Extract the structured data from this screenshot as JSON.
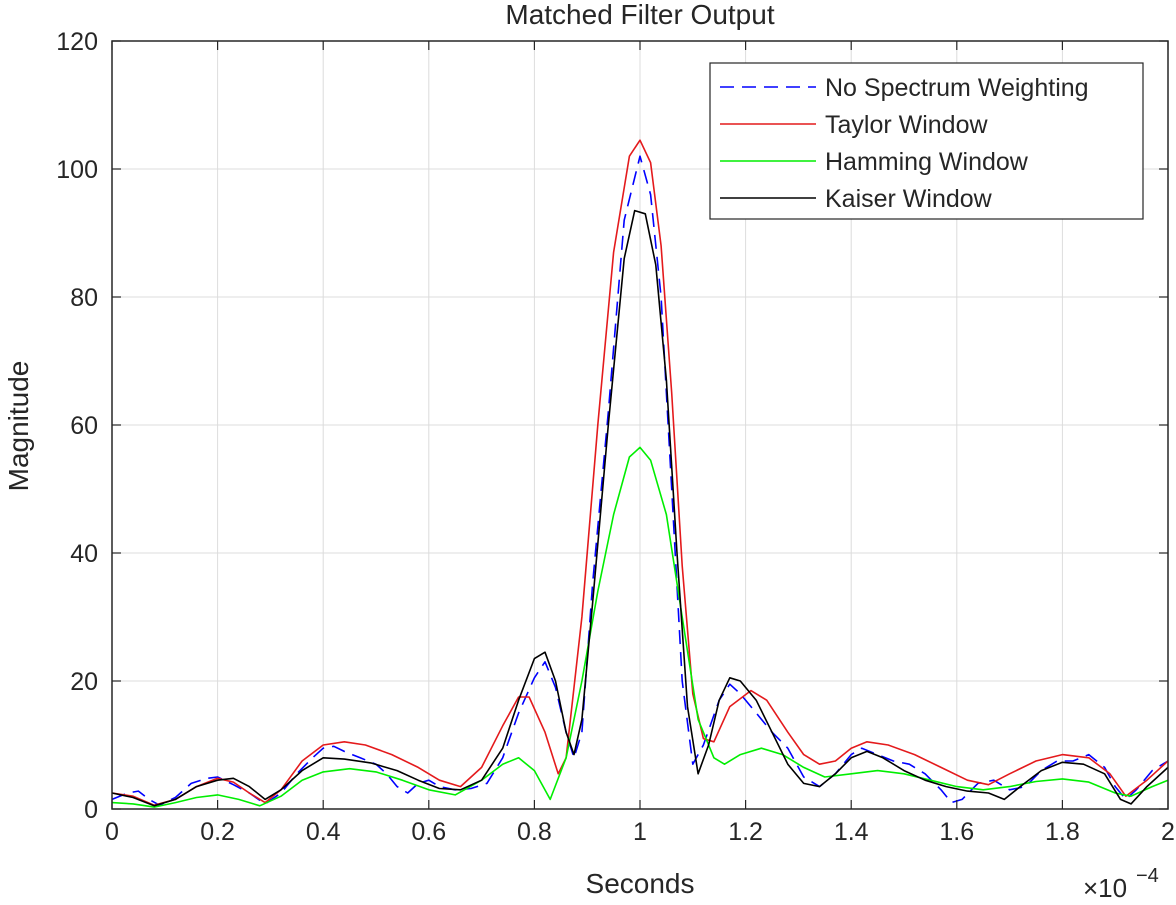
{
  "chart_data": {
    "type": "line",
    "title": "Matched Filter Output",
    "xlabel": "Seconds",
    "ylabel": "Magnitude",
    "x_exponent_label": "×10",
    "x_exponent_power": "−4",
    "xlim": [
      0,
      2
    ],
    "ylim": [
      0,
      120
    ],
    "xticks": [
      0,
      0.2,
      0.4,
      0.6,
      0.8,
      1,
      1.2,
      1.4,
      1.6,
      1.8,
      2
    ],
    "yticks": [
      0,
      20,
      40,
      60,
      80,
      100,
      120
    ],
    "xtick_labels": [
      "0",
      "0.2",
      "0.4",
      "0.6",
      "0.8",
      "1",
      "1.2",
      "1.4",
      "1.6",
      "1.8",
      "2"
    ],
    "ytick_labels": [
      "0",
      "20",
      "40",
      "60",
      "80",
      "100",
      "120"
    ],
    "grid": true,
    "legend_position": "top-right",
    "series": [
      {
        "name": "No Spectrum Weighting",
        "color": "#0000ff",
        "dash": "dashed",
        "points": [
          [
            0,
            1.5
          ],
          [
            0.03,
            2.5
          ],
          [
            0.05,
            2.8
          ],
          [
            0.07,
            1.5
          ],
          [
            0.09,
            0.6
          ],
          [
            0.12,
            1.8
          ],
          [
            0.15,
            4.0
          ],
          [
            0.18,
            4.8
          ],
          [
            0.2,
            5.0
          ],
          [
            0.23,
            3.8
          ],
          [
            0.26,
            2.5
          ],
          [
            0.29,
            0.8
          ],
          [
            0.32,
            2.5
          ],
          [
            0.35,
            5.5
          ],
          [
            0.38,
            8.0
          ],
          [
            0.4,
            9.5
          ],
          [
            0.42,
            9.8
          ],
          [
            0.44,
            9.0
          ],
          [
            0.47,
            8.0
          ],
          [
            0.5,
            7.0
          ],
          [
            0.52,
            5.5
          ],
          [
            0.54,
            3.5
          ],
          [
            0.56,
            2.5
          ],
          [
            0.58,
            4.0
          ],
          [
            0.6,
            4.5
          ],
          [
            0.62,
            3.5
          ],
          [
            0.65,
            3.0
          ],
          [
            0.68,
            3.2
          ],
          [
            0.71,
            4.0
          ],
          [
            0.74,
            8.0
          ],
          [
            0.77,
            15.0
          ],
          [
            0.8,
            20.5
          ],
          [
            0.82,
            23.0
          ],
          [
            0.84,
            19.0
          ],
          [
            0.86,
            12.0
          ],
          [
            0.875,
            8.0
          ],
          [
            0.89,
            12.0
          ],
          [
            0.91,
            35.0
          ],
          [
            0.94,
            62.0
          ],
          [
            0.97,
            92.0
          ],
          [
            1.0,
            102.0
          ],
          [
            1.02,
            96.0
          ],
          [
            1.04,
            80.0
          ],
          [
            1.06,
            50.0
          ],
          [
            1.08,
            20.0
          ],
          [
            1.1,
            7.0
          ],
          [
            1.12,
            10.0
          ],
          [
            1.15,
            17.0
          ],
          [
            1.17,
            19.5
          ],
          [
            1.19,
            18.0
          ],
          [
            1.22,
            15.0
          ],
          [
            1.25,
            12.0
          ],
          [
            1.28,
            9.5
          ],
          [
            1.31,
            5.0
          ],
          [
            1.34,
            3.5
          ],
          [
            1.37,
            5.5
          ],
          [
            1.4,
            8.5
          ],
          [
            1.42,
            9.5
          ],
          [
            1.45,
            8.5
          ],
          [
            1.48,
            7.5
          ],
          [
            1.51,
            7.0
          ],
          [
            1.54,
            5.5
          ],
          [
            1.57,
            3.0
          ],
          [
            1.59,
            1.0
          ],
          [
            1.61,
            1.5
          ],
          [
            1.64,
            4.0
          ],
          [
            1.67,
            4.5
          ],
          [
            1.7,
            3.0
          ],
          [
            1.73,
            3.5
          ],
          [
            1.76,
            6.0
          ],
          [
            1.79,
            7.5
          ],
          [
            1.82,
            7.5
          ],
          [
            1.85,
            8.5
          ],
          [
            1.88,
            6.5
          ],
          [
            1.9,
            3.5
          ],
          [
            1.92,
            1.5
          ],
          [
            1.94,
            3.0
          ],
          [
            1.97,
            6.0
          ],
          [
            2.0,
            7.5
          ]
        ]
      },
      {
        "name": "Taylor Window",
        "color": "#e41a1c",
        "dash": "solid",
        "points": [
          [
            0,
            2.5
          ],
          [
            0.04,
            2.0
          ],
          [
            0.08,
            0.6
          ],
          [
            0.12,
            1.5
          ],
          [
            0.16,
            3.5
          ],
          [
            0.2,
            4.8
          ],
          [
            0.23,
            4.2
          ],
          [
            0.26,
            2.5
          ],
          [
            0.29,
            1.0
          ],
          [
            0.32,
            3.0
          ],
          [
            0.36,
            7.5
          ],
          [
            0.4,
            10.0
          ],
          [
            0.44,
            10.5
          ],
          [
            0.48,
            10.0
          ],
          [
            0.53,
            8.5
          ],
          [
            0.58,
            6.5
          ],
          [
            0.62,
            4.5
          ],
          [
            0.66,
            3.5
          ],
          [
            0.7,
            6.5
          ],
          [
            0.74,
            13.0
          ],
          [
            0.77,
            17.5
          ],
          [
            0.79,
            17.5
          ],
          [
            0.82,
            12.0
          ],
          [
            0.845,
            5.5
          ],
          [
            0.86,
            8.0
          ],
          [
            0.89,
            30.0
          ],
          [
            0.92,
            60.0
          ],
          [
            0.95,
            87.0
          ],
          [
            0.98,
            102.0
          ],
          [
            1.0,
            104.5
          ],
          [
            1.02,
            101.0
          ],
          [
            1.04,
            88.0
          ],
          [
            1.06,
            65.0
          ],
          [
            1.08,
            38.0
          ],
          [
            1.1,
            18.0
          ],
          [
            1.12,
            11.0
          ],
          [
            1.14,
            10.5
          ],
          [
            1.17,
            16.0
          ],
          [
            1.21,
            18.5
          ],
          [
            1.24,
            17.0
          ],
          [
            1.28,
            12.0
          ],
          [
            1.31,
            8.5
          ],
          [
            1.34,
            7.0
          ],
          [
            1.37,
            7.5
          ],
          [
            1.4,
            9.5
          ],
          [
            1.43,
            10.5
          ],
          [
            1.47,
            10.0
          ],
          [
            1.52,
            8.5
          ],
          [
            1.57,
            6.5
          ],
          [
            1.62,
            4.5
          ],
          [
            1.66,
            3.8
          ],
          [
            1.7,
            5.5
          ],
          [
            1.75,
            7.5
          ],
          [
            1.8,
            8.5
          ],
          [
            1.85,
            8.0
          ],
          [
            1.89,
            5.5
          ],
          [
            1.92,
            2.0
          ],
          [
            1.96,
            4.5
          ],
          [
            2.0,
            7.5
          ]
        ]
      },
      {
        "name": "Hamming Window",
        "color": "#00ee00",
        "dash": "solid",
        "points": [
          [
            0,
            1.0
          ],
          [
            0.04,
            0.8
          ],
          [
            0.08,
            0.3
          ],
          [
            0.12,
            1.0
          ],
          [
            0.16,
            1.8
          ],
          [
            0.2,
            2.2
          ],
          [
            0.24,
            1.5
          ],
          [
            0.28,
            0.5
          ],
          [
            0.32,
            2.0
          ],
          [
            0.36,
            4.5
          ],
          [
            0.4,
            5.8
          ],
          [
            0.45,
            6.3
          ],
          [
            0.5,
            5.8
          ],
          [
            0.55,
            4.5
          ],
          [
            0.6,
            3.0
          ],
          [
            0.65,
            2.2
          ],
          [
            0.7,
            4.5
          ],
          [
            0.74,
            7.0
          ],
          [
            0.77,
            8.0
          ],
          [
            0.8,
            6.0
          ],
          [
            0.83,
            1.5
          ],
          [
            0.86,
            8.0
          ],
          [
            0.89,
            20.0
          ],
          [
            0.92,
            34.0
          ],
          [
            0.95,
            46.0
          ],
          [
            0.98,
            55.0
          ],
          [
            1.0,
            56.5
          ],
          [
            1.02,
            54.5
          ],
          [
            1.05,
            46.0
          ],
          [
            1.08,
            30.0
          ],
          [
            1.11,
            14.0
          ],
          [
            1.14,
            8.0
          ],
          [
            1.16,
            7.0
          ],
          [
            1.19,
            8.5
          ],
          [
            1.23,
            9.5
          ],
          [
            1.27,
            8.5
          ],
          [
            1.31,
            6.5
          ],
          [
            1.35,
            5.0
          ],
          [
            1.4,
            5.5
          ],
          [
            1.45,
            6.0
          ],
          [
            1.5,
            5.5
          ],
          [
            1.55,
            4.5
          ],
          [
            1.6,
            3.5
          ],
          [
            1.65,
            3.0
          ],
          [
            1.7,
            3.5
          ],
          [
            1.75,
            4.3
          ],
          [
            1.8,
            4.7
          ],
          [
            1.85,
            4.2
          ],
          [
            1.9,
            2.5
          ],
          [
            1.93,
            2.0
          ],
          [
            1.97,
            3.5
          ],
          [
            2.0,
            4.5
          ]
        ]
      },
      {
        "name": "Kaiser Window",
        "color": "#000000",
        "dash": "solid",
        "points": [
          [
            0,
            2.5
          ],
          [
            0.04,
            1.8
          ],
          [
            0.08,
            0.5
          ],
          [
            0.12,
            1.5
          ],
          [
            0.16,
            3.5
          ],
          [
            0.2,
            4.5
          ],
          [
            0.23,
            4.8
          ],
          [
            0.26,
            3.5
          ],
          [
            0.29,
            1.5
          ],
          [
            0.32,
            3.0
          ],
          [
            0.36,
            6.0
          ],
          [
            0.4,
            8.0
          ],
          [
            0.44,
            7.8
          ],
          [
            0.49,
            7.2
          ],
          [
            0.54,
            6.0
          ],
          [
            0.58,
            4.5
          ],
          [
            0.62,
            3.2
          ],
          [
            0.66,
            3.0
          ],
          [
            0.7,
            4.5
          ],
          [
            0.74,
            9.5
          ],
          [
            0.77,
            17.0
          ],
          [
            0.8,
            23.5
          ],
          [
            0.82,
            24.5
          ],
          [
            0.84,
            20.0
          ],
          [
            0.86,
            12.0
          ],
          [
            0.875,
            8.5
          ],
          [
            0.89,
            14.0
          ],
          [
            0.91,
            32.0
          ],
          [
            0.94,
            60.0
          ],
          [
            0.97,
            86.0
          ],
          [
            0.99,
            93.5
          ],
          [
            1.01,
            93.0
          ],
          [
            1.03,
            85.0
          ],
          [
            1.05,
            67.0
          ],
          [
            1.07,
            40.0
          ],
          [
            1.09,
            16.0
          ],
          [
            1.11,
            5.5
          ],
          [
            1.13,
            10.0
          ],
          [
            1.15,
            17.0
          ],
          [
            1.17,
            20.5
          ],
          [
            1.19,
            20.0
          ],
          [
            1.22,
            17.0
          ],
          [
            1.25,
            12.0
          ],
          [
            1.28,
            7.0
          ],
          [
            1.31,
            4.0
          ],
          [
            1.34,
            3.5
          ],
          [
            1.37,
            5.5
          ],
          [
            1.4,
            8.0
          ],
          [
            1.43,
            9.0
          ],
          [
            1.46,
            8.0
          ],
          [
            1.5,
            6.0
          ],
          [
            1.54,
            4.5
          ],
          [
            1.58,
            3.5
          ],
          [
            1.62,
            2.8
          ],
          [
            1.66,
            2.5
          ],
          [
            1.69,
            1.5
          ],
          [
            1.72,
            3.5
          ],
          [
            1.76,
            6.0
          ],
          [
            1.8,
            7.3
          ],
          [
            1.84,
            7.0
          ],
          [
            1.88,
            5.5
          ],
          [
            1.91,
            1.5
          ],
          [
            1.93,
            0.8
          ],
          [
            1.96,
            3.5
          ],
          [
            2.0,
            6.5
          ]
        ]
      }
    ]
  }
}
